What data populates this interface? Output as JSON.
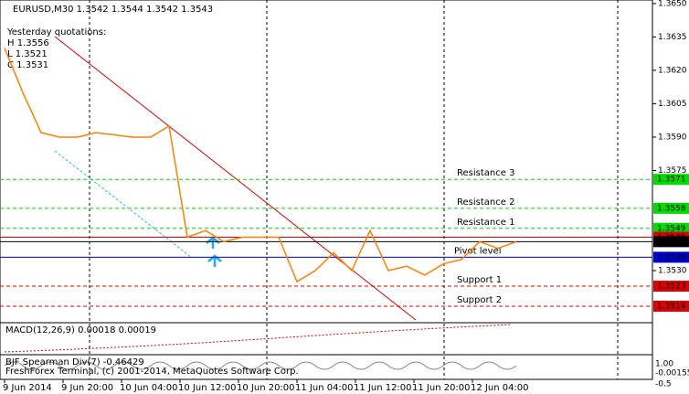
{
  "header": {
    "symbol": "EURUSD,M30  1.3542 1.3544 1.3542 1.3543",
    "yesterday": "Yesterday quotations:",
    "high": "H 1.3556",
    "low": "L 1.3521",
    "close": "C 1.3531"
  },
  "chart_data": {
    "type": "line",
    "color": "#ff8000",
    "values": [
      1.363,
      1.361,
      1.3592,
      1.359,
      1.359,
      1.3592,
      1.3591,
      1.359,
      1.359,
      1.3595,
      1.3545,
      1.3548,
      1.3543,
      1.3545,
      1.3545,
      1.3545,
      1.3525,
      1.353,
      1.3538,
      1.353,
      1.3548,
      1.353,
      1.3532,
      1.3528,
      1.3533,
      1.3535,
      1.3543,
      1.354,
      1.3543
    ],
    "ylim": [
      1.3507,
      1.36516
    ],
    "yticks": [
      {
        "value": 1.365,
        "label": "1.3650"
      },
      {
        "value": 1.3635,
        "label": "1.3635"
      },
      {
        "value": 1.362,
        "label": "1.3620"
      },
      {
        "value": 1.3605,
        "label": "1.3605"
      },
      {
        "value": 1.359,
        "label": "1.3590"
      },
      {
        "value": 1.3575,
        "label": "1.3575"
      },
      {
        "value": 1.353,
        "label": "1.3530"
      }
    ],
    "xticks": [
      {
        "value": 0,
        "label": "9 Jun 2014"
      },
      {
        "value": 3.2,
        "label": "9 Jun 20:00"
      },
      {
        "value": 6.4,
        "label": "10 Jun 04:00"
      },
      {
        "value": 9.6,
        "label": "10 Jun 12:00"
      },
      {
        "value": 12.8,
        "label": "10 Jun 20:00"
      },
      {
        "value": 16,
        "label": "11 Jun 04:00"
      },
      {
        "value": 19.2,
        "label": "11 Jun 12:00"
      },
      {
        "value": 22.4,
        "label": "11 Jun 20:00"
      },
      {
        "value": 25.6,
        "label": "12 Jun 04:00"
      }
    ],
    "levels": [
      {
        "name": "Resistance 3",
        "value": 1.3571,
        "label": "1.3571",
        "color": "#00dd00"
      },
      {
        "name": "Resistance 2",
        "value": 1.3558,
        "label": "1.3558",
        "color": "#00dd00"
      },
      {
        "name": "Resistance 1",
        "value": 1.3549,
        "label": "1.3549",
        "color": "#00dd00"
      },
      {
        "value": 1.3545,
        "label": "1.3545",
        "color": "#dd0000"
      },
      {
        "value": 1.3543,
        "label": "1.3543",
        "color": "#000000"
      },
      {
        "name": "Pivot level",
        "value": 1.3536,
        "label": "1.3536",
        "color": "#0000cc"
      },
      {
        "name": "Support 1",
        "value": 1.3523,
        "label": "1.3523",
        "color": "#dd0000"
      },
      {
        "name": "Support 2",
        "value": 1.3514,
        "label": "1.3514",
        "color": "#dd0000"
      }
    ]
  },
  "macd": {
    "label": "MACD(12,26,9) 0.00018 0.00019",
    "scale": "-0.00155"
  },
  "spearman": {
    "label": "BJF Spearman Div(7) -0.46429",
    "scale_top": "1.00",
    "scale_bottom": "-0.5"
  },
  "footer": "FreshForex Terminal, (c) 2001-2014, MetaQuotes Software Corp."
}
